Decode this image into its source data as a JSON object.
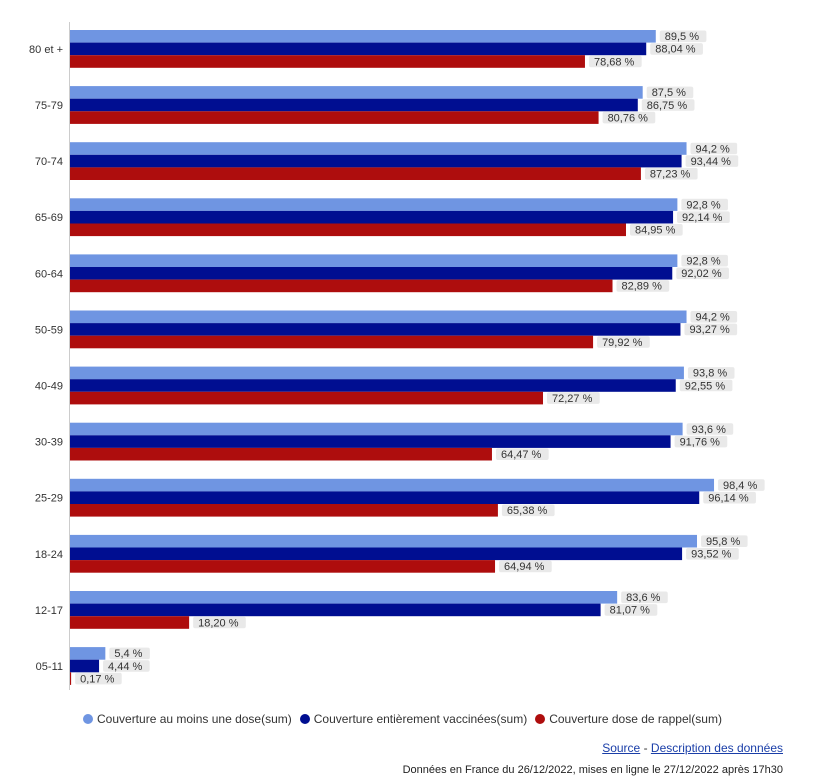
{
  "chart_data": {
    "type": "bar",
    "orientation": "horizontal",
    "categories": [
      "80 et +",
      "75-79",
      "70-74",
      "65-69",
      "60-64",
      "50-59",
      "40-49",
      "30-39",
      "25-29",
      "18-24",
      "12-17",
      "05-11"
    ],
    "series": [
      {
        "name": "Couverture au moins une dose(sum)",
        "color": "#6f95e2",
        "values": [
          89.5,
          87.5,
          94.2,
          92.8,
          92.8,
          94.2,
          93.8,
          93.6,
          98.4,
          95.8,
          83.6,
          5.4
        ],
        "labels": [
          "89,5 %",
          "87,5 %",
          "94,2 %",
          "92,8 %",
          "92,8 %",
          "94,2 %",
          "93,8 %",
          "93,6 %",
          "98,4 %",
          "95,8 %",
          "83,6 %",
          "5,4 %"
        ]
      },
      {
        "name": "Couverture entièrement vaccinées(sum)",
        "color": "#000e91",
        "values": [
          88.04,
          86.75,
          93.44,
          92.14,
          92.02,
          93.27,
          92.55,
          91.76,
          96.14,
          93.52,
          81.07,
          4.44
        ],
        "labels": [
          "88,04 %",
          "86,75 %",
          "93,44 %",
          "92,14 %",
          "92,02 %",
          "93,27 %",
          "92,55 %",
          "91,76 %",
          "96,14 %",
          "93,52 %",
          "81,07 %",
          "4,44 %"
        ]
      },
      {
        "name": "Couverture dose de rappel(sum)",
        "color": "#ae0d0d",
        "values": [
          78.68,
          80.76,
          87.23,
          84.95,
          82.89,
          79.92,
          72.27,
          64.47,
          65.38,
          64.94,
          18.2,
          0.17
        ],
        "labels": [
          "78,68 %",
          "80,76 %",
          "87,23 %",
          "84,95 %",
          "82,89 %",
          "79,92 %",
          "72,27 %",
          "64,47 %",
          "65,38 %",
          "64,94 %",
          "18,20 %",
          "0,17 %"
        ]
      }
    ],
    "xlim": [
      0,
      100
    ],
    "grid": false,
    "legend_position": "bottom-left"
  },
  "links": {
    "source": "Source",
    "separator": " - ",
    "description": "Description des données"
  },
  "footer": "Données en France du 26/12/2022, mises en ligne le 27/12/2022 après 17h30"
}
